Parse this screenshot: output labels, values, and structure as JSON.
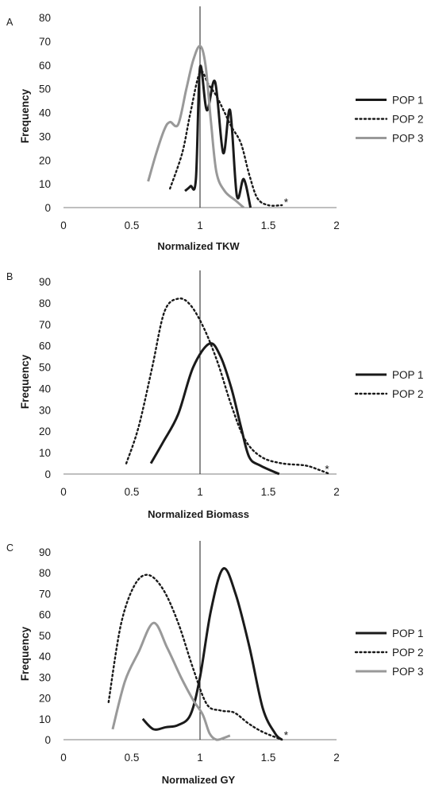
{
  "chart_data": [
    {
      "type": "line",
      "panel_label": "A",
      "xlabel": "Normalized TKW",
      "ylabel": "Frequency",
      "xlim": [
        0,
        2
      ],
      "ylim": [
        0,
        80
      ],
      "x_ticks": [
        "0",
        "0.5",
        "1",
        "1.5",
        "2"
      ],
      "y_ticks": [
        "0",
        "10",
        "20",
        "30",
        "40",
        "50",
        "60",
        "70",
        "80"
      ],
      "reference_line_x": 1,
      "legend_position": "right",
      "annotation": {
        "text": "*",
        "x": 1.63,
        "y": 2
      },
      "series": [
        {
          "name": "POP 1",
          "style": "solid",
          "color": "#1a1a1a",
          "points": [
            [
              0.89,
              7
            ],
            [
              0.93,
              9
            ],
            [
              0.97,
              12
            ],
            [
              1.0,
              59
            ],
            [
              1.05,
              41
            ],
            [
              1.11,
              53
            ],
            [
              1.17,
              23
            ],
            [
              1.22,
              41
            ],
            [
              1.27,
              5
            ],
            [
              1.32,
              12
            ],
            [
              1.37,
              0
            ]
          ]
        },
        {
          "name": "POP 2",
          "style": "dotted",
          "color": "#1a1a1a",
          "points": [
            [
              0.78,
              8
            ],
            [
              0.87,
              23
            ],
            [
              0.93,
              40
            ],
            [
              1.0,
              57
            ],
            [
              1.06,
              52
            ],
            [
              1.12,
              47
            ],
            [
              1.18,
              40
            ],
            [
              1.23,
              34
            ],
            [
              1.3,
              27
            ],
            [
              1.36,
              14
            ],
            [
              1.42,
              4
            ],
            [
              1.5,
              1
            ],
            [
              1.6,
              1
            ]
          ]
        },
        {
          "name": "POP 3",
          "style": "solid",
          "color": "#999999",
          "points": [
            [
              0.62,
              11
            ],
            [
              0.68,
              23
            ],
            [
              0.74,
              33
            ],
            [
              0.78,
              36
            ],
            [
              0.84,
              35
            ],
            [
              0.9,
              50
            ],
            [
              0.95,
              62
            ],
            [
              1.0,
              68
            ],
            [
              1.04,
              60
            ],
            [
              1.08,
              36
            ],
            [
              1.12,
              15
            ],
            [
              1.18,
              7
            ],
            [
              1.26,
              3
            ],
            [
              1.32,
              0
            ]
          ]
        }
      ]
    },
    {
      "type": "line",
      "panel_label": "B",
      "xlabel": "Normalized Biomass",
      "ylabel": "Frequency",
      "xlim": [
        0,
        2
      ],
      "ylim": [
        0,
        90
      ],
      "x_ticks": [
        "0",
        "0.5",
        "1",
        "1.5",
        "2"
      ],
      "y_ticks": [
        "0",
        "10",
        "20",
        "30",
        "40",
        "50",
        "60",
        "70",
        "80",
        "90"
      ],
      "reference_line_x": 1,
      "legend_position": "right",
      "annotation": {
        "text": "*",
        "x": 1.93,
        "y": 2
      },
      "series": [
        {
          "name": "POP 1",
          "style": "solid",
          "color": "#1a1a1a",
          "points": [
            [
              0.64,
              5
            ],
            [
              0.73,
              15
            ],
            [
              0.84,
              28
            ],
            [
              0.95,
              50
            ],
            [
              1.07,
              61
            ],
            [
              1.15,
              55
            ],
            [
              1.23,
              40
            ],
            [
              1.3,
              22
            ],
            [
              1.36,
              8
            ],
            [
              1.44,
              4
            ],
            [
              1.58,
              0
            ]
          ]
        },
        {
          "name": "POP 2",
          "style": "dotted",
          "color": "#1a1a1a",
          "points": [
            [
              0.46,
              5
            ],
            [
              0.55,
              22
            ],
            [
              0.65,
              50
            ],
            [
              0.74,
              76
            ],
            [
              0.84,
              82
            ],
            [
              0.93,
              79
            ],
            [
              1.03,
              68
            ],
            [
              1.13,
              52
            ],
            [
              1.23,
              32
            ],
            [
              1.33,
              16
            ],
            [
              1.45,
              8
            ],
            [
              1.6,
              5
            ],
            [
              1.77,
              4
            ],
            [
              1.87,
              2
            ],
            [
              1.95,
              0
            ]
          ]
        }
      ]
    },
    {
      "type": "line",
      "panel_label": "C",
      "xlabel": "Normalized GY",
      "ylabel": "Frequency",
      "xlim": [
        0,
        2
      ],
      "ylim": [
        0,
        90
      ],
      "x_ticks": [
        "0",
        "0.5",
        "1",
        "1.5",
        "2"
      ],
      "y_ticks": [
        "0",
        "10",
        "20",
        "30",
        "40",
        "50",
        "60",
        "70",
        "80",
        "90"
      ],
      "reference_line_x": 1,
      "legend_position": "right",
      "annotation": {
        "text": "*",
        "x": 1.63,
        "y": 2
      },
      "series": [
        {
          "name": "POP 1",
          "style": "solid",
          "color": "#1a1a1a",
          "points": [
            [
              0.58,
              10
            ],
            [
              0.66,
              5
            ],
            [
              0.75,
              6
            ],
            [
              0.84,
              7
            ],
            [
              0.93,
              12
            ],
            [
              1.0,
              30
            ],
            [
              1.08,
              62
            ],
            [
              1.17,
              82
            ],
            [
              1.26,
              70
            ],
            [
              1.36,
              45
            ],
            [
              1.46,
              15
            ],
            [
              1.55,
              3
            ],
            [
              1.6,
              0
            ]
          ]
        },
        {
          "name": "POP 2",
          "style": "dotted",
          "color": "#1a1a1a",
          "points": [
            [
              0.33,
              18
            ],
            [
              0.42,
              55
            ],
            [
              0.52,
              74
            ],
            [
              0.62,
              79
            ],
            [
              0.73,
              72
            ],
            [
              0.84,
              56
            ],
            [
              0.95,
              34
            ],
            [
              1.05,
              17
            ],
            [
              1.15,
              14
            ],
            [
              1.25,
              13
            ],
            [
              1.35,
              8
            ],
            [
              1.45,
              4
            ],
            [
              1.56,
              1
            ],
            [
              1.6,
              0
            ]
          ]
        },
        {
          "name": "POP 3",
          "style": "solid",
          "color": "#999999",
          "points": [
            [
              0.36,
              5
            ],
            [
              0.45,
              28
            ],
            [
              0.55,
              42
            ],
            [
              0.66,
              56
            ],
            [
              0.76,
              44
            ],
            [
              0.86,
              30
            ],
            [
              0.95,
              19
            ],
            [
              1.02,
              12
            ],
            [
              1.07,
              3
            ],
            [
              1.12,
              0
            ],
            [
              1.18,
              1
            ],
            [
              1.22,
              2
            ]
          ]
        }
      ]
    }
  ]
}
